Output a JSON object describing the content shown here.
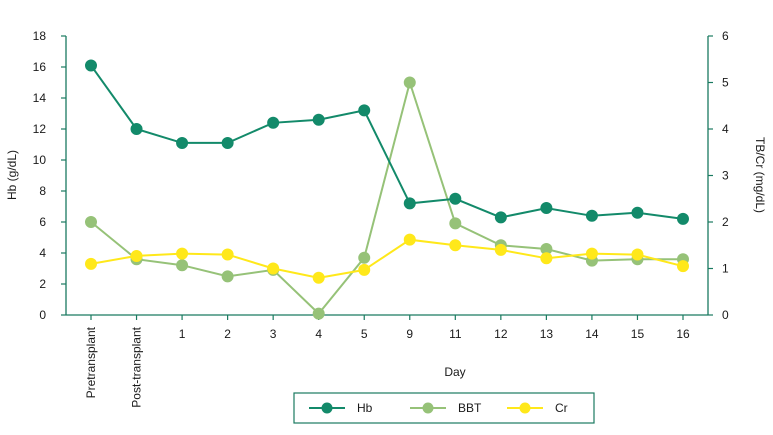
{
  "chart_data": {
    "type": "line",
    "categories": [
      "Pretransplant",
      "Post-transplant",
      "1",
      "2",
      "3",
      "4",
      "5",
      "9",
      "11",
      "12",
      "13",
      "14",
      "15",
      "16"
    ],
    "xlabel": "Day",
    "ylabel_left": "Hb (g/dL)",
    "ylabel_right": "TB/Cr (mg/dL)",
    "ylim_left": [
      0,
      18
    ],
    "yticks_left": [
      0,
      2,
      4,
      6,
      8,
      10,
      12,
      14,
      16,
      18
    ],
    "ylim_right": [
      0,
      6
    ],
    "yticks_right": [
      0,
      1,
      2,
      3,
      4,
      5,
      6
    ],
    "axis_color": "#1a7a60",
    "grid": false,
    "legend_position": "bottom-center",
    "series": [
      {
        "name": "Hb",
        "axis": "left",
        "color": "#138a6a",
        "values": [
          16.1,
          12.0,
          11.1,
          11.1,
          12.4,
          12.6,
          13.2,
          7.2,
          7.5,
          6.3,
          6.9,
          6.4,
          6.6,
          6.2
        ]
      },
      {
        "name": "BBT",
        "axis": "right",
        "color": "#96c278",
        "values": [
          2.0,
          1.2,
          1.07,
          0.83,
          0.97,
          0.03,
          1.23,
          5.0,
          1.97,
          1.5,
          1.42,
          1.17,
          1.2,
          1.2
        ]
      },
      {
        "name": "Cr",
        "axis": "right",
        "color": "#ffe81a",
        "values": [
          1.1,
          1.27,
          1.32,
          1.3,
          1.0,
          0.8,
          0.97,
          1.62,
          1.5,
          1.4,
          1.22,
          1.32,
          1.3,
          1.05
        ]
      }
    ]
  }
}
